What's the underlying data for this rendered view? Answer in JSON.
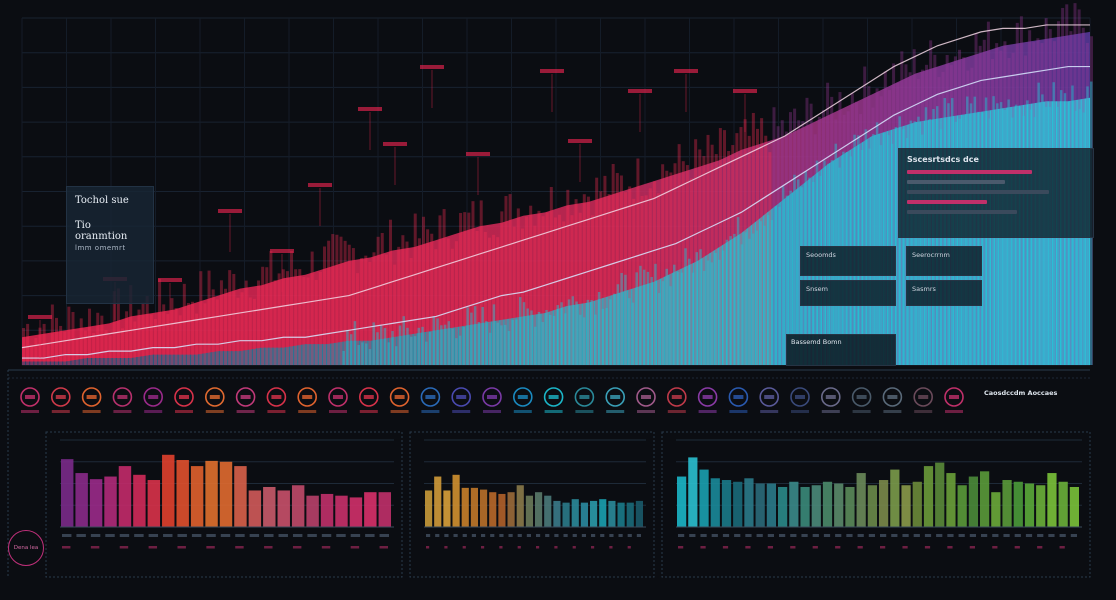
{
  "page": {
    "background": "#0b0d12"
  },
  "title_card": {
    "line1": "Tochol sue",
    "line2": "Tio oranmtion",
    "line3": "lmm  omemrt"
  },
  "info_panel": {
    "heading": "Sscesrtsdcs  dce"
  },
  "mini_boxes": [
    {
      "label": "Seoomds"
    },
    {
      "label": "Seerocrrnm"
    },
    {
      "label": "Snsem"
    },
    {
      "label": "Sasmrs"
    }
  ],
  "wide_label": "Bassemd  Bomn",
  "icon_strip_title": "Caosdccdm  Aoccaes",
  "bottom_badge": "Dena\nlea",
  "colors": {
    "red": "#e8244f",
    "magenta": "#b8316e",
    "purple": "#6a3aa6",
    "cyan": "#1bb6c8",
    "teal": "#0f8a9a",
    "orange": "#e0632e",
    "gold": "#d8a03a",
    "lime": "#7ac23a"
  },
  "icons": [
    "circle-icon",
    "circle-icon",
    "circle-icon",
    "circle-icon",
    "circle-icon",
    "circle-icon",
    "circle-icon",
    "circle-icon",
    "circle-icon",
    "circle-icon",
    "circle-icon",
    "circle-icon",
    "circle-icon",
    "circle-icon",
    "circle-icon",
    "circle-icon",
    "circle-icon",
    "circle-icon",
    "circle-icon",
    "circle-icon",
    "circle-icon",
    "circle-icon",
    "circle-icon",
    "circle-icon",
    "circle-icon",
    "circle-icon",
    "circle-icon",
    "circle-icon",
    "circle-icon",
    "circle-icon",
    "circle-icon",
    "circle-icon"
  ],
  "chart_data": [
    {
      "type": "area",
      "title": "",
      "xlabel": "",
      "ylabel": "",
      "grid": true,
      "series": [
        {
          "values": [
            8,
            9,
            10,
            11,
            12,
            14,
            15,
            16,
            18,
            20,
            22,
            23,
            25,
            26,
            28,
            30,
            31,
            33,
            34,
            36,
            38,
            40,
            41,
            43,
            44,
            46,
            47,
            49,
            51,
            53,
            55,
            57,
            59,
            62,
            64,
            66,
            69,
            72,
            75,
            78,
            81,
            84,
            86,
            88,
            90,
            92,
            93,
            94,
            95,
            96
          ]
        },
        {
          "values": [
            1,
            1,
            1,
            2,
            2,
            2,
            3,
            3,
            3,
            4,
            4,
            5,
            5,
            6,
            6,
            7,
            7,
            8,
            9,
            10,
            11,
            12,
            13,
            14,
            15,
            17,
            18,
            20,
            22,
            24,
            27,
            30,
            34,
            38,
            43,
            48,
            53,
            58,
            62,
            66,
            68,
            70,
            71,
            72,
            73,
            74,
            75,
            76,
            76,
            77
          ]
        }
      ],
      "lines": [
        {
          "values": [
            5,
            6,
            7,
            8,
            9,
            10,
            11,
            12,
            13,
            14,
            15,
            16,
            17,
            18,
            19,
            20,
            22,
            24,
            26,
            28,
            30,
            32,
            34,
            36,
            38,
            40,
            42,
            44,
            46,
            48,
            51,
            54,
            57,
            60,
            63,
            66,
            70,
            74,
            78,
            82,
            86,
            89,
            92,
            94,
            96,
            97,
            97,
            98,
            98,
            98
          ]
        },
        {
          "values": [
            2,
            2,
            3,
            3,
            4,
            4,
            5,
            5,
            6,
            6,
            7,
            7,
            8,
            8,
            9,
            10,
            11,
            12,
            13,
            14,
            16,
            18,
            20,
            21,
            23,
            25,
            27,
            29,
            31,
            33,
            35,
            38,
            41,
            44,
            48,
            52,
            56,
            60,
            64,
            68,
            72,
            75,
            78,
            80,
            82,
            83,
            84,
            85,
            86,
            86
          ]
        }
      ],
      "ylim": [
        0,
        100
      ]
    },
    {
      "type": "bar",
      "values": [
        78,
        62,
        55,
        58,
        70,
        60,
        54,
        83,
        77,
        70,
        76,
        75,
        70,
        42,
        46,
        42,
        48,
        36,
        38,
        36,
        34,
        40,
        40
      ],
      "ylim": [
        0,
        100
      ]
    },
    {
      "type": "bar",
      "values": [
        42,
        58,
        42,
        60,
        45,
        45,
        43,
        40,
        38,
        40,
        48,
        36,
        40,
        36,
        30,
        28,
        32,
        28,
        30,
        32,
        30,
        28,
        28,
        30
      ],
      "ylim": [
        0,
        100
      ]
    },
    {
      "type": "bar",
      "values": [
        58,
        80,
        66,
        56,
        54,
        52,
        56,
        50,
        50,
        46,
        52,
        46,
        48,
        52,
        50,
        46,
        62,
        48,
        54,
        66,
        48,
        52,
        70,
        74,
        62,
        48,
        58,
        64,
        40,
        54,
        52,
        50,
        48,
        62,
        52,
        46
      ],
      "ylim": [
        0,
        100
      ]
    }
  ]
}
